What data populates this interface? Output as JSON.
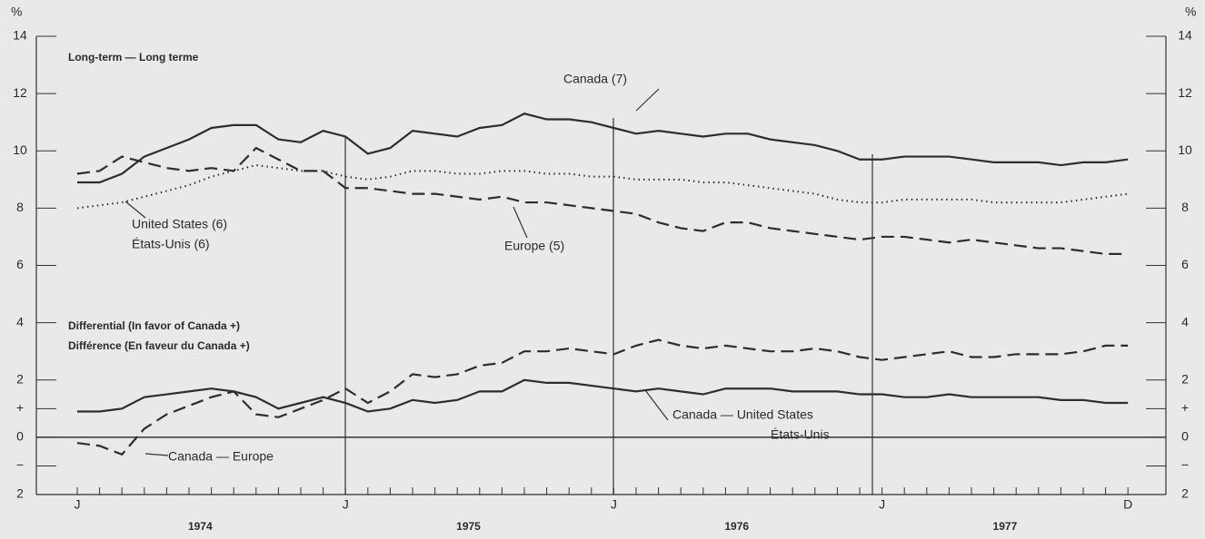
{
  "chart_data": {
    "type": "line",
    "unit": "%",
    "panel_titles": [
      "Long-term — Long terme",
      "Differential (In favor of Canada +)",
      "Différence (En faveur du Canada +)"
    ],
    "categories": [
      "J",
      null,
      null,
      null,
      null,
      null,
      null,
      null,
      null,
      null,
      null,
      null,
      "J",
      null,
      null,
      null,
      null,
      null,
      null,
      null,
      null,
      null,
      null,
      null,
      "J",
      null,
      null,
      null,
      null,
      null,
      null,
      null,
      null,
      null,
      null,
      null,
      "J",
      null,
      null,
      null,
      null,
      null,
      null,
      null,
      null,
      null,
      null,
      "D"
    ],
    "years": [
      "1974",
      "1975",
      "1976",
      "1977"
    ],
    "ylim": [
      -2,
      14
    ],
    "yticks": [
      14,
      12,
      10,
      8,
      6,
      4,
      2,
      {
        "value": 1,
        "label": "+"
      },
      0,
      {
        "value": -1,
        "label": "−"
      },
      {
        "value": -2,
        "label": "2"
      }
    ],
    "color": "#2d2d2d",
    "series": [
      {
        "name": "Canada (7)",
        "dash": "solid",
        "values": [
          8.9,
          8.9,
          9.2,
          9.8,
          10.1,
          10.4,
          10.8,
          10.9,
          10.9,
          10.4,
          10.3,
          10.7,
          10.5,
          9.9,
          10.1,
          10.7,
          10.6,
          10.5,
          10.8,
          10.9,
          11.3,
          11.1,
          11.1,
          11.0,
          10.8,
          10.6,
          10.7,
          10.6,
          10.5,
          10.6,
          10.6,
          10.4,
          10.3,
          10.2,
          10.0,
          9.7,
          9.7,
          9.8,
          9.8,
          9.8,
          9.7,
          9.6,
          9.6,
          9.6,
          9.5,
          9.6,
          9.6,
          9.7
        ]
      },
      {
        "name": "United States (6)",
        "name_fr": "États-Unis (6)",
        "dash": "dotted",
        "values": [
          8.0,
          8.1,
          8.2,
          8.4,
          8.6,
          8.8,
          9.1,
          9.3,
          9.5,
          9.4,
          9.3,
          9.3,
          9.1,
          9.0,
          9.1,
          9.3,
          9.3,
          9.2,
          9.2,
          9.3,
          9.3,
          9.2,
          9.2,
          9.1,
          9.1,
          9.0,
          9.0,
          9.0,
          8.9,
          8.9,
          8.8,
          8.7,
          8.6,
          8.5,
          8.3,
          8.2,
          8.2,
          8.3,
          8.3,
          8.3,
          8.3,
          8.2,
          8.2,
          8.2,
          8.2,
          8.3,
          8.4,
          8.5
        ]
      },
      {
        "name": "Europe (5)",
        "dash": "dashed",
        "values": [
          9.2,
          9.3,
          9.8,
          9.6,
          9.4,
          9.3,
          9.4,
          9.3,
          10.1,
          9.7,
          9.3,
          9.3,
          8.7,
          8.7,
          8.6,
          8.5,
          8.5,
          8.4,
          8.3,
          8.4,
          8.2,
          8.2,
          8.1,
          8.0,
          7.9,
          7.8,
          7.5,
          7.3,
          7.2,
          7.5,
          7.5,
          7.3,
          7.2,
          7.1,
          7.0,
          6.9,
          7.0,
          7.0,
          6.9,
          6.8,
          6.9,
          6.8,
          6.7,
          6.6,
          6.6,
          6.5,
          6.4,
          6.4
        ]
      },
      {
        "name": "Canada — United States",
        "name_fr": "États-Unis",
        "dash": "solid",
        "values": [
          0.9,
          0.9,
          1.0,
          1.4,
          1.5,
          1.6,
          1.7,
          1.6,
          1.4,
          1.0,
          1.2,
          1.4,
          1.2,
          0.9,
          1.0,
          1.3,
          1.2,
          1.3,
          1.6,
          1.6,
          2.0,
          1.9,
          1.9,
          1.8,
          1.7,
          1.6,
          1.7,
          1.6,
          1.5,
          1.7,
          1.7,
          1.7,
          1.6,
          1.6,
          1.6,
          1.5,
          1.5,
          1.4,
          1.4,
          1.5,
          1.4,
          1.4,
          1.4,
          1.4,
          1.3,
          1.3,
          1.2,
          1.2
        ]
      },
      {
        "name": "Canada — Europe",
        "dash": "dashed",
        "values": [
          -0.2,
          -0.3,
          -0.6,
          0.3,
          0.8,
          1.1,
          1.4,
          1.6,
          0.8,
          0.7,
          1.0,
          1.3,
          1.7,
          1.2,
          1.6,
          2.2,
          2.1,
          2.2,
          2.5,
          2.6,
          3.0,
          3.0,
          3.1,
          3.0,
          2.9,
          3.2,
          3.4,
          3.2,
          3.1,
          3.2,
          3.1,
          3.0,
          3.0,
          3.1,
          3.0,
          2.8,
          2.7,
          2.8,
          2.9,
          3.0,
          2.8,
          2.8,
          2.9,
          2.9,
          2.9,
          3.0,
          3.2,
          3.2
        ]
      }
    ]
  }
}
